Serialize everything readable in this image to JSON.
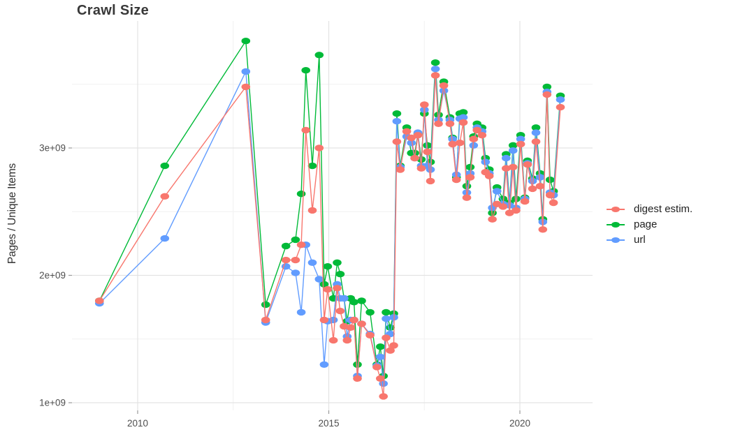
{
  "chart_data": {
    "type": "line",
    "title": "Crawl Size",
    "xlabel": "",
    "ylabel": "Pages / Unique Items",
    "legend_position": "right",
    "grid": true,
    "x_unit": "year (decimal, one point per crawl)",
    "values_unit": "items, in units of 1e9 (billions)",
    "xlim": [
      2008.3,
      2021.9
    ],
    "ylim": [
      0.94,
      4.0
    ],
    "x_ticks": [
      {
        "label": "2010",
        "value": 2010
      },
      {
        "label": "2015",
        "value": 2015
      },
      {
        "label": "2020",
        "value": 2020
      }
    ],
    "y_ticks": [
      {
        "label": "1e+09",
        "value": 1
      },
      {
        "label": "2e+09",
        "value": 2
      },
      {
        "label": "3e+09",
        "value": 3
      }
    ],
    "x_minor": [
      2012.5,
      2017.5
    ],
    "y_minor": [
      1.5,
      2.5,
      3.5
    ],
    "x": [
      2009.0,
      2010.71,
      2012.83,
      2013.35,
      2013.88,
      2014.13,
      2014.28,
      2014.4,
      2014.57,
      2014.75,
      2014.88,
      2014.97,
      2015.12,
      2015.22,
      2015.3,
      2015.4,
      2015.48,
      2015.57,
      2015.66,
      2015.75,
      2015.86,
      2016.08,
      2016.26,
      2016.35,
      2016.43,
      2016.5,
      2016.61,
      2016.7,
      2016.78,
      2016.87,
      2017.04,
      2017.16,
      2017.25,
      2017.33,
      2017.42,
      2017.5,
      2017.58,
      2017.66,
      2017.79,
      2017.87,
      2018.01,
      2018.17,
      2018.24,
      2018.34,
      2018.43,
      2018.52,
      2018.61,
      2018.7,
      2018.79,
      2018.88,
      2019.01,
      2019.1,
      2019.2,
      2019.28,
      2019.4,
      2019.56,
      2019.64,
      2019.73,
      2019.82,
      2019.9,
      2020.02,
      2020.13,
      2020.2,
      2020.33,
      2020.42,
      2020.53,
      2020.6,
      2020.71,
      2020.79,
      2020.88,
      2021.06
    ],
    "series": [
      {
        "name": "digest estim.",
        "color": "#F8766D",
        "values": [
          1.8,
          2.62,
          3.48,
          1.65,
          2.12,
          2.12,
          2.24,
          3.14,
          2.51,
          3.0,
          1.65,
          1.89,
          1.49,
          1.9,
          1.72,
          1.6,
          1.49,
          1.59,
          1.65,
          1.19,
          1.62,
          1.53,
          1.28,
          1.19,
          1.05,
          1.51,
          1.41,
          1.45,
          3.05,
          2.83,
          3.13,
          3.08,
          2.92,
          3.1,
          2.84,
          3.34,
          2.97,
          2.74,
          3.57,
          3.19,
          3.49,
          3.19,
          3.03,
          2.75,
          3.04,
          3.2,
          2.61,
          2.77,
          3.07,
          3.14,
          3.1,
          2.81,
          2.78,
          2.44,
          2.56,
          2.54,
          2.84,
          2.49,
          2.85,
          2.51,
          3.03,
          2.58,
          2.87,
          2.68,
          3.05,
          2.7,
          2.36,
          3.42,
          2.63,
          2.57,
          3.32
        ]
      },
      {
        "name": "page",
        "color": "#00BA38",
        "values": [
          1.8,
          2.86,
          3.84,
          1.77,
          2.23,
          2.28,
          2.64,
          3.61,
          2.86,
          3.73,
          1.93,
          2.07,
          1.82,
          2.1,
          2.01,
          1.82,
          1.64,
          1.82,
          1.79,
          1.3,
          1.8,
          1.71,
          1.3,
          1.44,
          1.21,
          1.71,
          1.59,
          1.7,
          3.27,
          2.86,
          3.16,
          2.96,
          2.96,
          3.11,
          2.91,
          3.27,
          3.02,
          2.89,
          3.67,
          3.26,
          3.52,
          3.24,
          3.08,
          2.77,
          3.27,
          3.28,
          2.7,
          2.85,
          3.09,
          3.19,
          3.16,
          2.92,
          2.83,
          2.49,
          2.69,
          2.6,
          2.95,
          2.57,
          3.02,
          2.6,
          3.1,
          2.61,
          2.9,
          2.76,
          3.16,
          2.8,
          2.44,
          3.48,
          2.75,
          2.66,
          3.41
        ]
      },
      {
        "name": "url",
        "color": "#619CFF",
        "values": [
          1.78,
          2.29,
          3.6,
          1.63,
          2.07,
          2.02,
          1.71,
          2.24,
          2.1,
          1.97,
          1.3,
          1.64,
          1.65,
          1.93,
          1.82,
          1.82,
          1.52,
          1.65,
          1.65,
          1.21,
          1.62,
          1.54,
          1.29,
          1.36,
          1.15,
          1.66,
          1.54,
          1.67,
          3.21,
          2.85,
          3.09,
          3.04,
          2.92,
          3.12,
          2.86,
          3.3,
          2.86,
          2.83,
          3.62,
          3.22,
          3.45,
          3.22,
          3.07,
          2.79,
          3.23,
          3.24,
          2.65,
          2.8,
          3.02,
          3.16,
          3.13,
          2.89,
          2.8,
          2.53,
          2.66,
          2.56,
          2.92,
          2.55,
          2.98,
          2.53,
          3.07,
          2.6,
          2.88,
          2.74,
          3.12,
          2.77,
          2.42,
          3.44,
          2.65,
          2.63,
          3.38
        ]
      }
    ]
  }
}
